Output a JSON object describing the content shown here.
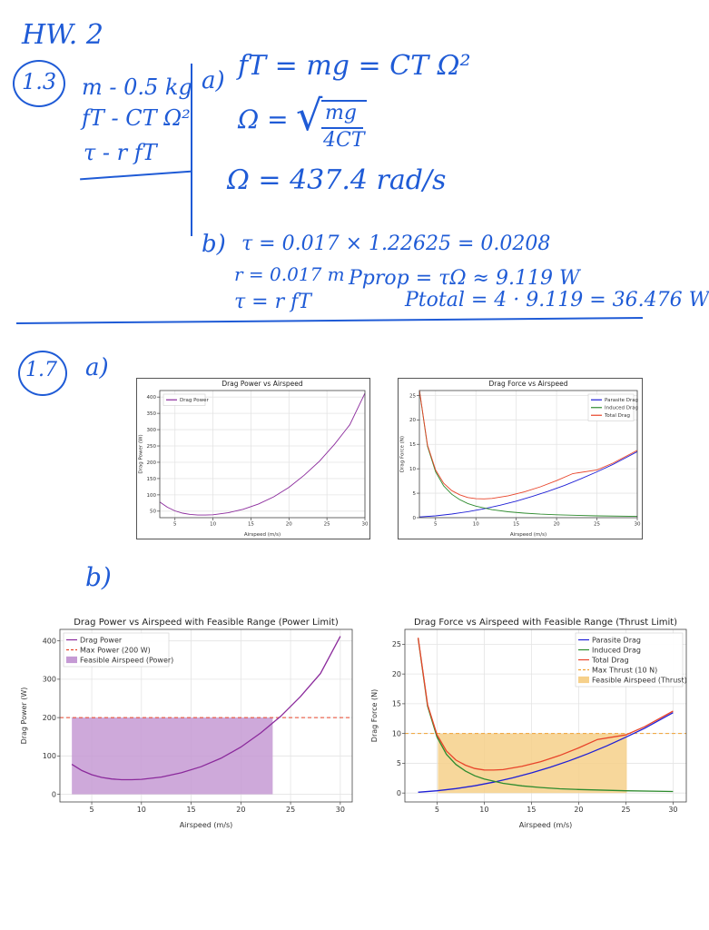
{
  "notes": {
    "header": "HW. 2",
    "p13": {
      "label": "1.3",
      "given": [
        "m - 0.5 kg",
        "fT - CT Ω²",
        "τ - r fT"
      ],
      "a_marker": "a)",
      "a_eq1": "fT = mg = CT Ω²",
      "a_eq2_lhs": "Ω =",
      "a_eq2_num": "mg",
      "a_eq2_den": "4CT",
      "a_eq3": "Ω = 437.4 rad/s",
      "b_marker": "b)",
      "b_eq1": "τ = 0.017 × 1.22625 = 0.0208",
      "b_eq2": "r = 0.017 m",
      "b_eq3": "τ = r fT",
      "b_eq4": "Pprop = τΩ ≈ 9.119 W",
      "b_eq5": "Ptotal = 4 · 9.119 = 36.476 W"
    },
    "p17": {
      "label": "1.7",
      "a_marker": "a)",
      "b_marker": "b)"
    }
  },
  "colors": {
    "ink": "#1f5bd6",
    "power": "#8b2a9c",
    "parasite": "#1f1fd6",
    "induced": "#2e8b2e",
    "total": "#e8442a",
    "maxline": "#e8442a",
    "feasible_power": "#c59ad4",
    "feasible_thrust": "#f6d08a",
    "thrust_line": "#f0a030"
  },
  "chart_data": [
    {
      "type": "line",
      "title": "Drag Power vs Airspeed",
      "xlabel": "Airspeed (m/s)",
      "ylabel": "Drag Power (W)",
      "xlim": [
        3,
        30
      ],
      "ylim": [
        30,
        420
      ],
      "xticks": [
        5,
        10,
        15,
        20,
        25,
        30
      ],
      "yticks": [
        50,
        100,
        150,
        200,
        250,
        300,
        350,
        400
      ],
      "grid": true,
      "legend": "top-left",
      "series": [
        {
          "name": "Drag Power",
          "x": [
            3,
            4,
            5,
            6,
            7,
            8,
            9,
            10,
            12,
            14,
            16,
            18,
            20,
            22,
            24,
            26,
            28,
            30
          ],
          "values": [
            78,
            62,
            51,
            44,
            40,
            38,
            38,
            39,
            45,
            56,
            72,
            94,
            123,
            160,
            203,
            255,
            315,
            412
          ]
        }
      ]
    },
    {
      "type": "line",
      "title": "Drag Force vs Airspeed",
      "xlabel": "Airspeed (m/s)",
      "ylabel": "Drag Force (N)",
      "xlim": [
        3,
        30
      ],
      "ylim": [
        0,
        26
      ],
      "xticks": [
        5,
        10,
        15,
        20,
        25,
        30
      ],
      "yticks": [
        0,
        5,
        10,
        15,
        20,
        25
      ],
      "grid": true,
      "legend": "top-right",
      "series": [
        {
          "name": "Parasite Drag",
          "x": [
            3,
            5,
            7,
            9,
            11,
            13,
            15,
            17,
            19,
            21,
            23,
            25,
            27,
            30
          ],
          "values": [
            0.14,
            0.38,
            0.74,
            1.22,
            1.82,
            2.54,
            3.38,
            4.34,
            5.42,
            6.62,
            7.94,
            9.38,
            10.9,
            13.5
          ]
        },
        {
          "name": "Induced Drag",
          "x": [
            3,
            4,
            5,
            6,
            7,
            8,
            9,
            10,
            12,
            14,
            16,
            18,
            20,
            25,
            30
          ],
          "values": [
            26,
            14.6,
            9.4,
            6.5,
            4.8,
            3.7,
            2.9,
            2.35,
            1.63,
            1.2,
            0.92,
            0.72,
            0.59,
            0.38,
            0.26
          ]
        },
        {
          "name": "Total Drag",
          "x": [
            3,
            4,
            5,
            6,
            7,
            8,
            9,
            10,
            11,
            12,
            14,
            16,
            18,
            20,
            22,
            25,
            27,
            30
          ],
          "values": [
            26.1,
            14.85,
            9.78,
            7.04,
            5.54,
            4.68,
            4.12,
            3.88,
            3.85,
            3.93,
            4.48,
            5.28,
            6.32,
            7.58,
            9.0,
            9.76,
            11.16,
            13.76
          ]
        }
      ]
    },
    {
      "type": "area",
      "title": "Drag Power vs Airspeed with Feasible Range (Power Limit)",
      "xlabel": "Airspeed (m/s)",
      "ylabel": "Drag Power (W)",
      "xlim": [
        1.8,
        31.2
      ],
      "ylim": [
        -20,
        430
      ],
      "xticks": [
        5,
        10,
        15,
        20,
        25,
        30
      ],
      "yticks": [
        0,
        100,
        200,
        300,
        400
      ],
      "grid": true,
      "legend": "top-left",
      "hline": {
        "value": 200,
        "name": "Max Power (200 W)"
      },
      "feasible": {
        "from": 3,
        "to": 23.2,
        "name": "Feasible Airspeed (Power)"
      },
      "series": [
        {
          "name": "Drag Power",
          "x": [
            3,
            4,
            5,
            6,
            7,
            8,
            9,
            10,
            12,
            14,
            16,
            18,
            20,
            22,
            24,
            26,
            28,
            30
          ],
          "values": [
            78,
            62,
            51,
            44,
            40,
            38,
            38,
            39,
            45,
            56,
            72,
            94,
            123,
            160,
            203,
            255,
            315,
            412
          ]
        }
      ]
    },
    {
      "type": "area",
      "title": "Drag Force vs Airspeed with Feasible Range (Thrust Limit)",
      "xlabel": "Airspeed (m/s)",
      "ylabel": "Drag Force (N)",
      "xlim": [
        1.6,
        31.4
      ],
      "ylim": [
        -1.5,
        27.5
      ],
      "xticks": [
        5,
        10,
        15,
        20,
        25,
        30
      ],
      "yticks": [
        0,
        5,
        10,
        15,
        20,
        25
      ],
      "grid": true,
      "legend": "top-right",
      "hline": {
        "value": 10,
        "name": "Max Thrust (10 N)"
      },
      "feasible": {
        "from": 5.1,
        "to": 25.1,
        "name": "Feasible Airspeed (Thrust)"
      },
      "series": [
        {
          "name": "Parasite Drag",
          "x": [
            3,
            5,
            7,
            9,
            11,
            13,
            15,
            17,
            19,
            21,
            23,
            25,
            27,
            30
          ],
          "values": [
            0.14,
            0.38,
            0.74,
            1.22,
            1.82,
            2.54,
            3.38,
            4.34,
            5.42,
            6.62,
            7.94,
            9.38,
            10.9,
            13.5
          ]
        },
        {
          "name": "Induced Drag",
          "x": [
            3,
            4,
            5,
            6,
            7,
            8,
            9,
            10,
            12,
            14,
            16,
            18,
            20,
            25,
            30
          ],
          "values": [
            26,
            14.6,
            9.4,
            6.5,
            4.8,
            3.7,
            2.9,
            2.35,
            1.63,
            1.2,
            0.92,
            0.72,
            0.59,
            0.38,
            0.26
          ]
        },
        {
          "name": "Total Drag",
          "x": [
            3,
            4,
            5,
            6,
            7,
            8,
            9,
            10,
            11,
            12,
            14,
            16,
            18,
            20,
            22,
            25,
            27,
            30
          ],
          "values": [
            26.1,
            14.85,
            9.78,
            7.04,
            5.54,
            4.68,
            4.12,
            3.88,
            3.85,
            3.93,
            4.48,
            5.28,
            6.32,
            7.58,
            9.0,
            9.76,
            11.16,
            13.76
          ]
        }
      ]
    }
  ]
}
